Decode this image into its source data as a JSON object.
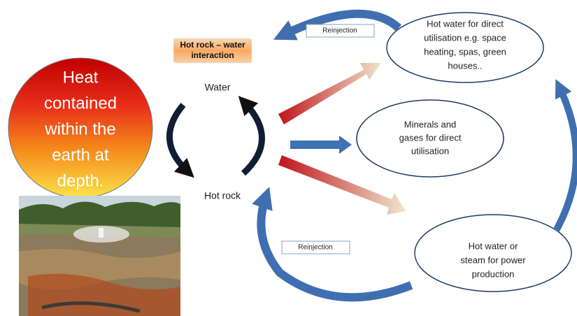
{
  "header_box": {
    "lines": [
      "Hot rock – water",
      "interaction"
    ]
  },
  "heat_source": {
    "lines": [
      "Heat",
      "contained",
      "within the",
      "earth at",
      "depth."
    ]
  },
  "cycle": {
    "top": "Water",
    "bottom": "Hot rock"
  },
  "reinjection_labels": [
    "Reinjection",
    "Reinjection"
  ],
  "outputs": [
    {
      "lines": [
        "Hot water for direct",
        "utilisation e.g. space",
        "heating, spas, green",
        "houses.."
      ]
    },
    {
      "lines": [
        "Minerals and",
        "gases for direct",
        "utilisation"
      ]
    },
    {
      "lines": [
        "Hot water or",
        "steam for power",
        "production"
      ]
    }
  ]
}
